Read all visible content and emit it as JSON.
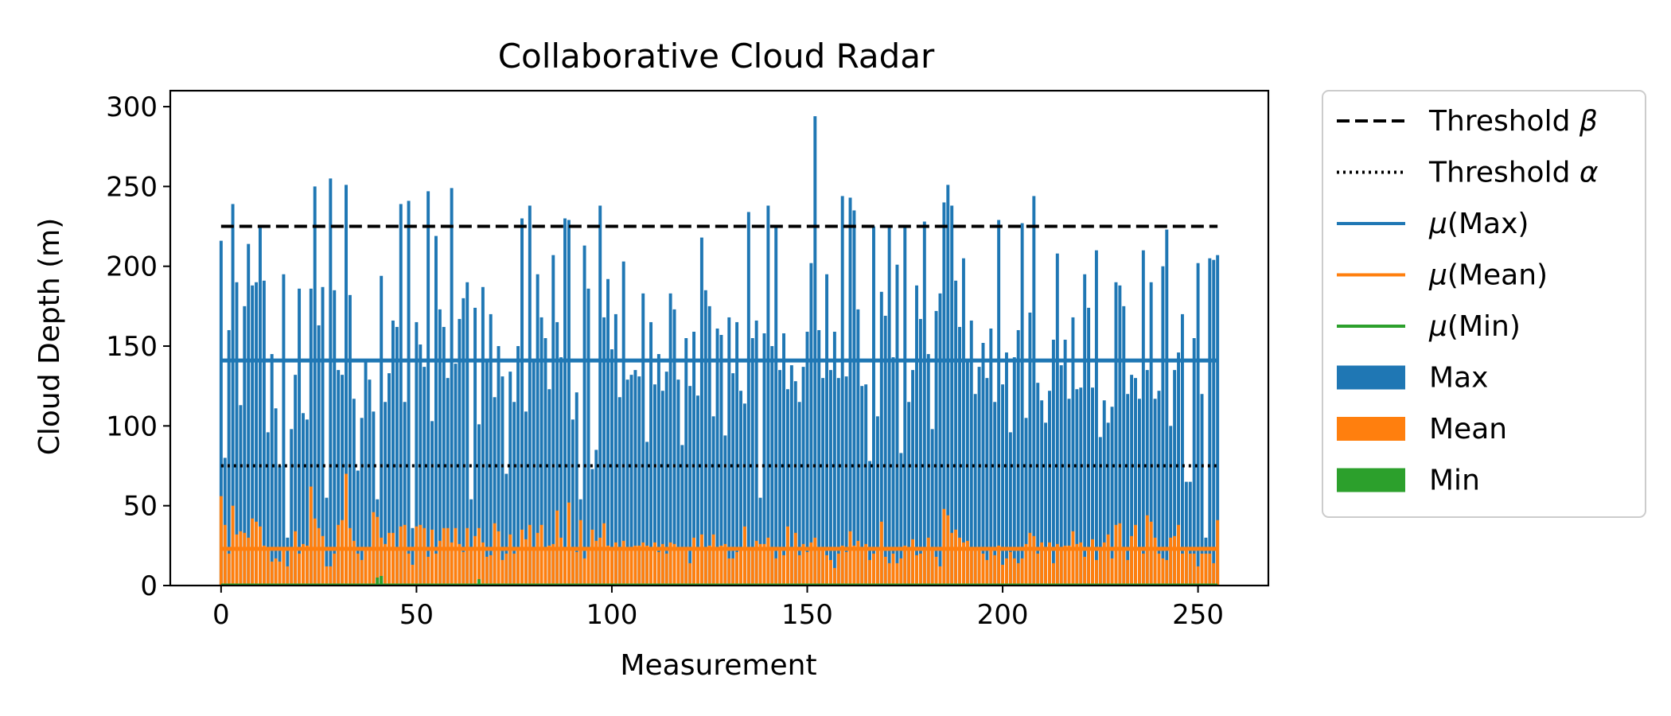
{
  "chart_data": {
    "type": "bar",
    "title": "Collaborative Cloud Radar",
    "xlabel": "Measurement",
    "ylabel": "Cloud Depth (m)",
    "xlim": [
      -13,
      268
    ],
    "ylim": [
      0,
      310
    ],
    "x_ticks": [
      0,
      50,
      100,
      150,
      200,
      250
    ],
    "y_ticks": [
      0,
      50,
      100,
      150,
      200,
      250,
      300
    ],
    "grid": false,
    "legend_position": "outside-right",
    "x": [
      0,
      1,
      2,
      3,
      4,
      5,
      6,
      7,
      8,
      9,
      10,
      11,
      12,
      13,
      14,
      15,
      16,
      17,
      18,
      19,
      20,
      21,
      22,
      23,
      24,
      25,
      26,
      27,
      28,
      29,
      30,
      31,
      32,
      33,
      34,
      35,
      36,
      37,
      38,
      39,
      40,
      41,
      42,
      43,
      44,
      45,
      46,
      47,
      48,
      49,
      50,
      51,
      52,
      53,
      54,
      55,
      56,
      57,
      58,
      59,
      60,
      61,
      62,
      63,
      64,
      65,
      66,
      67,
      68,
      69,
      70,
      71,
      72,
      73,
      74,
      75,
      76,
      77,
      78,
      79,
      80,
      81,
      82,
      83,
      84,
      85,
      86,
      87,
      88,
      89,
      90,
      91,
      92,
      93,
      94,
      95,
      96,
      97,
      98,
      99,
      100,
      101,
      102,
      103,
      104,
      105,
      106,
      107,
      108,
      109,
      110,
      111,
      112,
      113,
      114,
      115,
      116,
      117,
      118,
      119,
      120,
      121,
      122,
      123,
      124,
      125,
      126,
      127,
      128,
      129,
      130,
      131,
      132,
      133,
      134,
      135,
      136,
      137,
      138,
      139,
      140,
      141,
      142,
      143,
      144,
      145,
      146,
      147,
      148,
      149,
      150,
      151,
      152,
      153,
      154,
      155,
      156,
      157,
      158,
      159,
      160,
      161,
      162,
      163,
      164,
      165,
      166,
      167,
      168,
      169,
      170,
      171,
      172,
      173,
      174,
      175,
      176,
      177,
      178,
      179,
      180,
      181,
      182,
      183,
      184,
      185,
      186,
      187,
      188,
      189,
      190,
      191,
      192,
      193,
      194,
      195,
      196,
      197,
      198,
      199,
      200,
      201,
      202,
      203,
      204,
      205,
      206,
      207,
      208,
      209,
      210,
      211,
      212,
      213,
      214,
      215,
      216,
      217,
      218,
      219,
      220,
      221,
      222,
      223,
      224,
      225,
      226,
      227,
      228,
      229,
      230,
      231,
      232,
      233,
      234,
      235,
      236,
      237,
      238,
      239,
      240,
      241,
      242,
      243,
      244,
      245,
      246,
      247,
      248,
      249,
      250,
      251,
      252,
      253,
      254,
      255
    ],
    "series": [
      {
        "name": "Max",
        "color": "#1f77b4",
        "values": [
          216,
          80,
          160,
          239,
          190,
          113,
          175,
          214,
          188,
          190,
          225,
          191,
          96,
          145,
          111,
          75,
          195,
          30,
          98,
          132,
          186,
          108,
          104,
          186,
          250,
          163,
          187,
          55,
          255,
          185,
          135,
          132,
          251,
          182,
          117,
          72,
          105,
          141,
          129,
          109,
          54,
          194,
          115,
          133,
          166,
          162,
          239,
          115,
          241,
          36,
          165,
          151,
          137,
          247,
          103,
          219,
          173,
          162,
          130,
          249,
          139,
          167,
          180,
          190,
          54,
          174,
          101,
          187,
          142,
          170,
          118,
          150,
          131,
          70,
          134,
          115,
          150,
          230,
          109,
          238,
          140,
          195,
          168,
          155,
          123,
          207,
          165,
          143,
          230,
          229,
          104,
          121,
          54,
          213,
          186,
          73,
          85,
          238,
          168,
          192,
          148,
          170,
          118,
          203,
          129,
          132,
          135,
          131,
          183,
          90,
          165,
          126,
          145,
          122,
          134,
          183,
          173,
          129,
          88,
          155,
          125,
          159,
          119,
          218,
          185,
          175,
          106,
          161,
          157,
          94,
          168,
          133,
          165,
          122,
          114,
          234,
          155,
          166,
          55,
          158,
          238,
          150,
          225,
          135,
          158,
          123,
          138,
          128,
          115,
          137,
          159,
          202,
          294,
          160,
          130,
          195,
          135,
          159,
          130,
          244,
          131,
          243,
          235,
          173,
          125,
          126,
          78,
          225,
          106,
          184,
          169,
          226,
          143,
          201,
          83,
          225,
          115,
          135,
          188,
          167,
          228,
          145,
          98,
          172,
          183,
          240,
          251,
          238,
          191,
          162,
          205,
          142,
          166,
          120,
          137,
          152,
          130,
          161,
          115,
          229,
          126,
          146,
          96,
          143,
          160,
          227,
          105,
          171,
          244,
          127,
          116,
          102,
          122,
          154,
          208,
          138,
          154,
          117,
          168,
          123,
          124,
          195,
          174,
          124,
          210,
          93,
          116,
          102,
          112,
          190,
          188,
          175,
          120,
          132,
          130,
          117,
          210,
          135,
          190,
          117,
          122,
          200,
          223,
          100,
          135,
          146,
          170,
          65,
          65,
          155,
          202,
          120,
          30,
          205,
          204,
          207
        ],
        "mean_line": 141
      },
      {
        "name": "Mean",
        "color": "#ff7f0e",
        "values": [
          56,
          38,
          20,
          50,
          32,
          34,
          33,
          30,
          42,
          40,
          37,
          25,
          22,
          15,
          17,
          15,
          24,
          12,
          22,
          34,
          20,
          26,
          25,
          62,
          42,
          36,
          31,
          12,
          12,
          20,
          38,
          41,
          70,
          36,
          28,
          20,
          16,
          22,
          23,
          46,
          43,
          30,
          26,
          33,
          33,
          23,
          37,
          38,
          20,
          13,
          37,
          38,
          36,
          18,
          35,
          20,
          28,
          36,
          36,
          27,
          36,
          26,
          21,
          36,
          24,
          31,
          36,
          27,
          18,
          19,
          39,
          34,
          16,
          20,
          32,
          20,
          22,
          35,
          29,
          38,
          22,
          33,
          38,
          23,
          25,
          26,
          47,
          30,
          23,
          52,
          23,
          21,
          41,
          17,
          24,
          35,
          28,
          30,
          39,
          25,
          24,
          27,
          22,
          28,
          24,
          23,
          25,
          25,
          27,
          25,
          23,
          27,
          21,
          26,
          20,
          27,
          26,
          23,
          22,
          23,
          14,
          30,
          24,
          32,
          23,
          25,
          32,
          24,
          25,
          26,
          17,
          17,
          21,
          22,
          37,
          24,
          24,
          28,
          26,
          26,
          30,
          22,
          17,
          22,
          19,
          37,
          24,
          33,
          19,
          26,
          21,
          27,
          30,
          24,
          22,
          19,
          16,
          11,
          20,
          25,
          21,
          34,
          25,
          28,
          22,
          26,
          16,
          20,
          22,
          40,
          18,
          14,
          20,
          14,
          17,
          25,
          22,
          29,
          19,
          20,
          24,
          30,
          24,
          18,
          12,
          48,
          44,
          33,
          35,
          30,
          27,
          28,
          23,
          22,
          24,
          20,
          16,
          22,
          19,
          25,
          13,
          17,
          21,
          17,
          14,
          17,
          26,
          33,
          31,
          20,
          27,
          24,
          27,
          14,
          26,
          22,
          25,
          25,
          34,
          26,
          27,
          18,
          24,
          29,
          16,
          23,
          27,
          32,
          17,
          38,
          39,
          23,
          16,
          31,
          38,
          22,
          20,
          44,
          40,
          30,
          20,
          17,
          16,
          30,
          31,
          38,
          20,
          24,
          20,
          20,
          12,
          20,
          20,
          20,
          14,
          41
        ],
        "mean_line": 23
      },
      {
        "name": "Min",
        "color": "#2ca02c",
        "values": [
          0,
          0,
          0,
          0,
          0,
          0,
          0,
          0,
          0,
          0,
          0,
          0,
          0,
          0,
          0,
          0,
          0,
          0,
          0,
          0,
          0,
          0,
          0,
          0,
          0,
          0,
          0,
          0,
          0,
          0,
          0,
          0,
          0,
          0,
          0,
          0,
          0,
          0,
          0,
          0,
          5,
          6,
          0,
          0,
          0,
          0,
          0,
          0,
          0,
          0,
          0,
          0,
          0,
          0,
          0,
          0,
          0,
          0,
          0,
          0,
          0,
          0,
          0,
          0,
          0,
          0,
          4,
          0,
          0,
          0,
          0,
          0,
          0,
          0,
          0,
          0,
          0,
          0,
          0,
          0,
          0,
          0,
          0,
          0,
          0,
          0,
          0,
          0,
          0,
          0,
          0,
          0,
          0,
          0,
          0,
          0,
          0,
          0,
          0,
          0,
          0,
          0,
          0,
          0,
          0,
          0,
          0,
          0,
          0,
          0,
          0,
          0,
          0,
          0,
          0,
          0,
          0,
          0,
          0,
          0,
          0,
          0,
          0,
          0,
          0,
          0,
          0,
          0,
          0,
          0,
          0,
          0,
          0,
          0,
          0,
          0,
          0,
          0,
          0,
          0,
          0,
          0,
          0,
          0,
          0,
          0,
          0,
          0,
          0,
          0,
          0,
          0,
          0,
          0,
          0,
          0,
          0,
          0,
          0,
          0,
          0,
          0,
          0,
          0,
          0,
          0,
          0,
          0,
          0,
          0,
          0,
          0,
          0,
          0,
          0,
          0,
          0,
          0,
          0,
          0,
          0,
          0,
          0,
          0,
          0,
          0,
          0,
          0,
          0,
          0,
          0,
          0,
          0,
          0,
          0,
          0,
          0,
          0,
          0,
          0,
          0,
          0,
          0,
          0,
          0,
          0,
          0,
          0,
          0,
          0,
          0,
          0,
          0,
          0,
          0,
          0,
          0,
          0,
          0,
          0,
          0,
          0,
          0,
          0,
          0,
          0,
          0,
          0,
          0,
          0,
          0,
          0,
          0,
          0,
          0,
          0,
          0,
          0,
          0,
          0,
          0,
          0,
          0,
          0,
          0,
          0,
          0,
          0,
          0,
          0,
          0,
          0,
          0,
          0,
          0,
          0
        ],
        "mean_line": 0
      }
    ],
    "thresholds": [
      {
        "name": "Threshold β",
        "value": 225,
        "color": "#000000",
        "style": "dashed"
      },
      {
        "name": "Threshold α",
        "value": 75,
        "color": "#000000",
        "style": "dotted"
      }
    ],
    "legend": [
      {
        "label_prefix": "Threshold ",
        "label_symbol": "β",
        "label_suffix": "",
        "kind": "line",
        "style": "dashed",
        "color": "#000000"
      },
      {
        "label_prefix": "Threshold ",
        "label_symbol": "α",
        "label_suffix": "",
        "kind": "line",
        "style": "dotted",
        "color": "#000000"
      },
      {
        "label_prefix": "",
        "label_symbol": "μ",
        "label_suffix": "(Max)",
        "kind": "line",
        "style": "solid",
        "color": "#1f77b4"
      },
      {
        "label_prefix": "",
        "label_symbol": "μ",
        "label_suffix": "(Mean)",
        "kind": "line",
        "style": "solid",
        "color": "#ff7f0e"
      },
      {
        "label_prefix": "",
        "label_symbol": "μ",
        "label_suffix": "(Min)",
        "kind": "line",
        "style": "solid",
        "color": "#2ca02c"
      },
      {
        "label_prefix": "Max",
        "label_symbol": "",
        "label_suffix": "",
        "kind": "patch",
        "color": "#1f77b4"
      },
      {
        "label_prefix": "Mean",
        "label_symbol": "",
        "label_suffix": "",
        "kind": "patch",
        "color": "#ff7f0e"
      },
      {
        "label_prefix": "Min",
        "label_symbol": "",
        "label_suffix": "",
        "kind": "patch",
        "color": "#2ca02c"
      }
    ]
  }
}
